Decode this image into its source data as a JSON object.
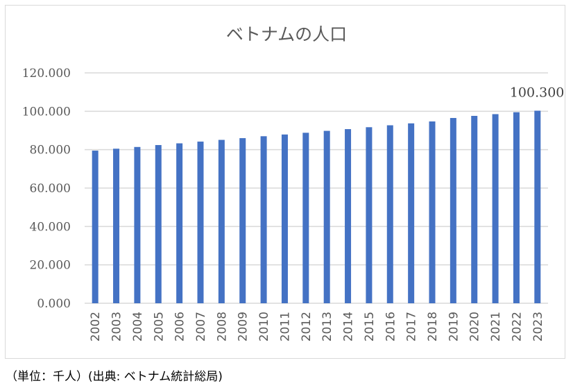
{
  "chart_data": {
    "type": "bar",
    "title": "ベトナムの人口",
    "categories": [
      "2002",
      "2003",
      "2004",
      "2005",
      "2006",
      "2007",
      "2008",
      "2009",
      "2010",
      "2011",
      "2012",
      "2013",
      "2014",
      "2015",
      "2016",
      "2017",
      "2018",
      "2019",
      "2020",
      "2021",
      "2022",
      "2023"
    ],
    "values": [
      79500,
      80500,
      81400,
      82400,
      83300,
      84200,
      85100,
      86000,
      87000,
      87900,
      88800,
      89800,
      90700,
      91700,
      92700,
      93700,
      94700,
      96500,
      97600,
      98500,
      99500,
      100300
    ],
    "ylim": [
      0,
      120000
    ],
    "yticks": [
      "0.000",
      "20.000",
      "40.000",
      "60.000",
      "80.000",
      "100.000",
      "120.000"
    ],
    "data_labels": {
      "2023": "100.300"
    },
    "grid": true,
    "color": "#4472c4"
  },
  "footer": "（単位：千人）(出典: ベトナム統計総局)"
}
